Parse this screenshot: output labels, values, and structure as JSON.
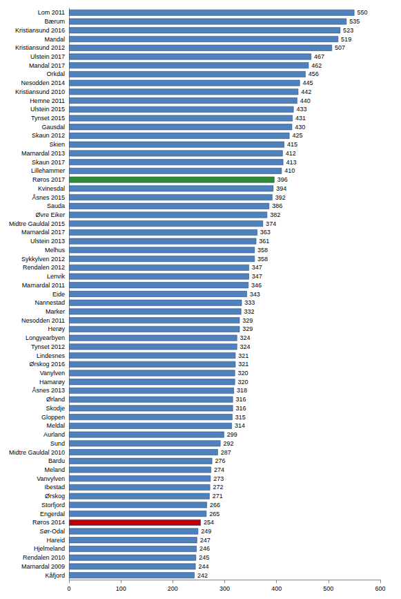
{
  "chart_data": {
    "type": "bar",
    "orientation": "horizontal",
    "categories": [
      "Lom 2011",
      "Bærum",
      "Kristiansund 2016",
      "Mandal",
      "Kristiansund 2012",
      "Ulstein 2017",
      "Mandal 2017",
      "Orkdal",
      "Nesodden 2014",
      "Kristiansund 2010",
      "Hemne 2011",
      "Ulstein 2015",
      "Tynset 2015",
      "Gausdal",
      "Skaun 2012",
      "Skien",
      "Marnardal 2013",
      "Skaun 2017",
      "Lillehammer",
      "Røros 2017",
      "Kvinesdal",
      "Åsnes 2015",
      "Sauda",
      "Øvre Eiker",
      "Midtre Gauldal 2015",
      "Marnardal 2017",
      "Ulstein 2013",
      "Melhus",
      "Sykkylven 2012",
      "Rendalen 2012",
      "Lenvik",
      "Marnardal 2011",
      "Eide",
      "Nannestad",
      "Marker",
      "Nesodden 2011",
      "Herøy",
      "Longyearbyen",
      "Tynset 2012",
      "Lindesnes",
      "Ørskog 2016",
      "Vanylven",
      "Hamarøy",
      "Åsnes 2013",
      "Ørland",
      "Skodje",
      "Gloppen",
      "Meldal",
      "Aurland",
      "Sund",
      "Midtre Gauldal 2010",
      "Bardu",
      "Meland",
      "Vanvylven",
      "Ibestad",
      "Ørskog",
      "Storfjord",
      "Engerdal",
      "Røros 2014",
      "Sør-Odal",
      "Hareid",
      "Hjelmeland",
      "Rendalen 2010",
      "Marnardal 2009",
      "Kåfjord"
    ],
    "values": [
      550,
      535,
      523,
      519,
      507,
      467,
      462,
      456,
      445,
      442,
      440,
      433,
      431,
      430,
      425,
      415,
      412,
      413,
      410,
      396,
      394,
      392,
      386,
      382,
      374,
      363,
      361,
      358,
      358,
      347,
      347,
      346,
      343,
      333,
      332,
      329,
      329,
      324,
      324,
      321,
      321,
      320,
      320,
      318,
      316,
      316,
      315,
      314,
      299,
      292,
      287,
      276,
      274,
      273,
      272,
      271,
      266,
      265,
      254,
      249,
      247,
      246,
      245,
      244,
      242
    ],
    "colors": [
      "#4f81bd",
      "#4f81bd",
      "#4f81bd",
      "#4f81bd",
      "#4f81bd",
      "#4f81bd",
      "#4f81bd",
      "#4f81bd",
      "#4f81bd",
      "#4f81bd",
      "#4f81bd",
      "#4f81bd",
      "#4f81bd",
      "#4f81bd",
      "#4f81bd",
      "#4f81bd",
      "#4f81bd",
      "#4f81bd",
      "#4f81bd",
      "#2e8b2e",
      "#4f81bd",
      "#4f81bd",
      "#4f81bd",
      "#4f81bd",
      "#4f81bd",
      "#4f81bd",
      "#4f81bd",
      "#4f81bd",
      "#4f81bd",
      "#4f81bd",
      "#4f81bd",
      "#4f81bd",
      "#4f81bd",
      "#4f81bd",
      "#4f81bd",
      "#4f81bd",
      "#4f81bd",
      "#4f81bd",
      "#4f81bd",
      "#4f81bd",
      "#4f81bd",
      "#4f81bd",
      "#4f81bd",
      "#4f81bd",
      "#4f81bd",
      "#4f81bd",
      "#4f81bd",
      "#4f81bd",
      "#4f81bd",
      "#4f81bd",
      "#4f81bd",
      "#4f81bd",
      "#4f81bd",
      "#4f81bd",
      "#4f81bd",
      "#4f81bd",
      "#4f81bd",
      "#4f81bd",
      "#c00000",
      "#4f81bd",
      "#4f81bd",
      "#4f81bd",
      "#4f81bd",
      "#4f81bd",
      "#4f81bd"
    ],
    "xlim": [
      0,
      600
    ],
    "xticks": [
      0,
      100,
      200,
      300,
      400,
      500,
      600
    ],
    "grid": false,
    "data_labels": true
  }
}
